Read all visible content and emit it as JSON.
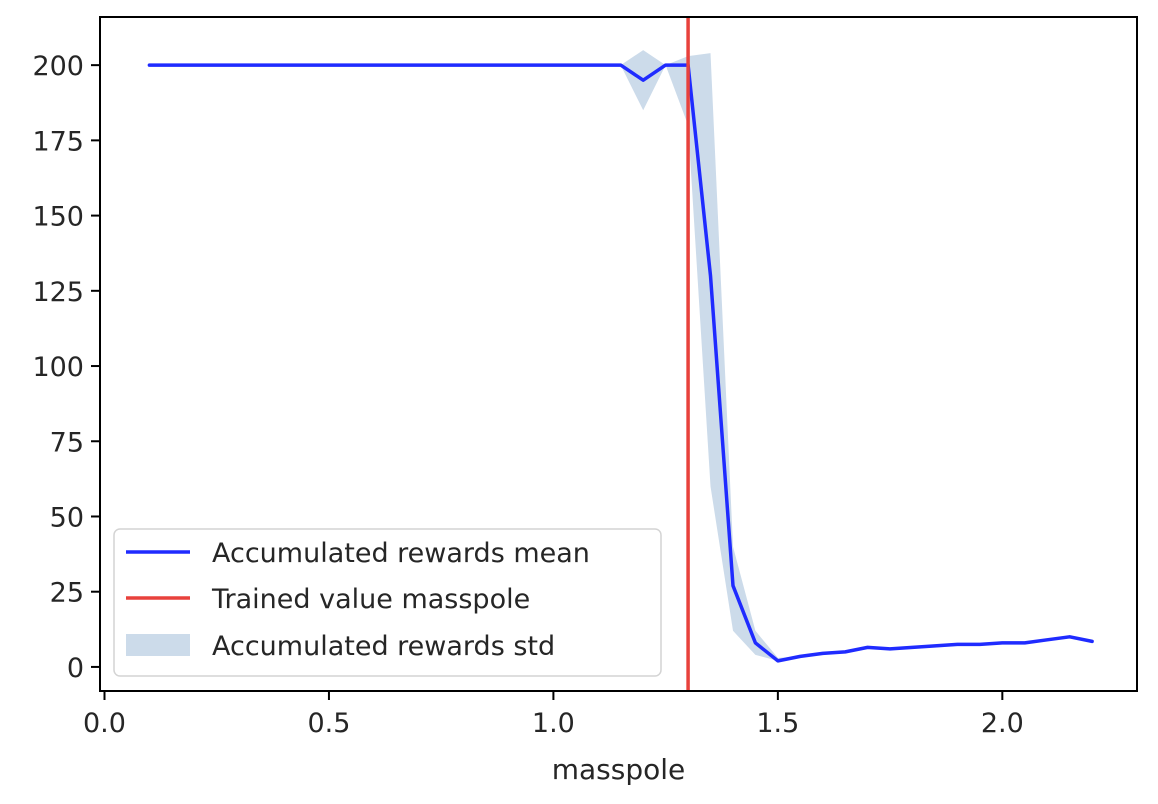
{
  "chart_data": {
    "type": "line",
    "title": "",
    "xlabel": "masspole",
    "ylabel": "",
    "xlim": [
      -0.01,
      2.3
    ],
    "ylim": [
      -8,
      216
    ],
    "xticks": [
      0.0,
      0.5,
      1.0,
      1.5,
      2.0
    ],
    "xtick_labels": [
      "0.0",
      "0.5",
      "1.0",
      "1.5",
      "2.0"
    ],
    "yticks": [
      0,
      25,
      50,
      75,
      100,
      125,
      150,
      175,
      200
    ],
    "ytick_labels": [
      "0",
      "25",
      "50",
      "75",
      "100",
      "125",
      "150",
      "175",
      "200"
    ],
    "grid": false,
    "legend_position": "lower left",
    "colors": {
      "mean": "#1f2bff",
      "trained": "#e8413c",
      "std": "#ccdbea"
    },
    "series": [
      {
        "name": "Accumulated rewards mean",
        "kind": "line",
        "x": [
          0.1,
          0.15,
          0.2,
          0.25,
          0.3,
          0.35,
          0.4,
          0.45,
          0.5,
          0.55,
          0.6,
          0.65,
          0.7,
          0.75,
          0.8,
          0.85,
          0.9,
          0.95,
          1.0,
          1.05,
          1.1,
          1.15,
          1.2,
          1.25,
          1.3,
          1.35,
          1.4,
          1.45,
          1.5,
          1.55,
          1.6,
          1.65,
          1.7,
          1.75,
          1.8,
          1.85,
          1.9,
          1.95,
          2.0,
          2.05,
          2.1,
          2.15,
          2.2
        ],
        "values": [
          200,
          200,
          200,
          200,
          200,
          200,
          200,
          200,
          200,
          200,
          200,
          200,
          200,
          200,
          200,
          200,
          200,
          200,
          200,
          200,
          200,
          200,
          195,
          200,
          200,
          130,
          27,
          8,
          2,
          3.5,
          4.5,
          5,
          6.5,
          6,
          6.5,
          7,
          7.5,
          7.5,
          8,
          8,
          9,
          10,
          8.5
        ]
      },
      {
        "name": "Accumulated rewards std",
        "kind": "band",
        "x": [
          0.1,
          0.15,
          0.2,
          0.25,
          0.3,
          0.35,
          0.4,
          0.45,
          0.5,
          0.55,
          0.6,
          0.65,
          0.7,
          0.75,
          0.8,
          0.85,
          0.9,
          0.95,
          1.0,
          1.05,
          1.1,
          1.15,
          1.2,
          1.25,
          1.3,
          1.35,
          1.4,
          1.45,
          1.5,
          1.55,
          1.6,
          1.65,
          1.7,
          1.75,
          1.8,
          1.85,
          1.9,
          1.95,
          2.0,
          2.05,
          2.1,
          2.15,
          2.2
        ],
        "lower": [
          200,
          200,
          200,
          200,
          200,
          200,
          200,
          200,
          200,
          200,
          200,
          200,
          200,
          200,
          200,
          200,
          200,
          200,
          200,
          200,
          200,
          200,
          185,
          200,
          180,
          60,
          12,
          4,
          2,
          3.5,
          4.5,
          5,
          6.5,
          6,
          6.5,
          7,
          7.5,
          7.5,
          8,
          8,
          9,
          10,
          8.5
        ],
        "upper": [
          200,
          200,
          200,
          200,
          200,
          200,
          200,
          200,
          200,
          200,
          200,
          200,
          200,
          200,
          200,
          200,
          200,
          200,
          200,
          200,
          200,
          200,
          205,
          200,
          203,
          204,
          40,
          12,
          3,
          3.5,
          4.5,
          5,
          6.5,
          6,
          6.5,
          7,
          7.5,
          7.5,
          8,
          8,
          9,
          10,
          8.5
        ]
      },
      {
        "name": "Trained value masspole",
        "kind": "vline",
        "x": 1.3
      }
    ]
  }
}
